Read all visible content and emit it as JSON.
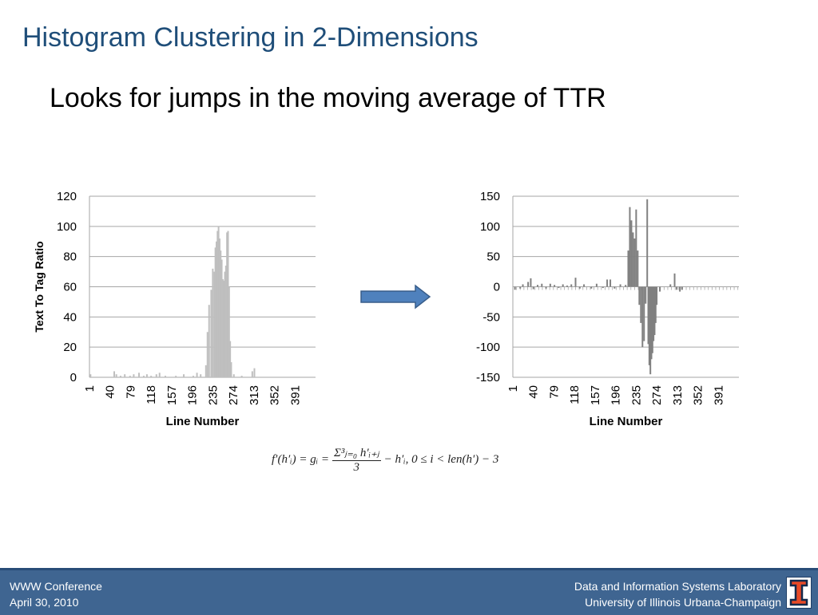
{
  "slide": {
    "title": "Histogram Clustering in 2-Dimensions",
    "bullet": "Looks for jumps in the moving average of TTR"
  },
  "chart_data": [
    {
      "type": "bar",
      "title": "",
      "xlabel": "Line Number",
      "ylabel": "Text To Tag Ratio",
      "ylim": [
        0,
        120
      ],
      "yticks": [
        "0",
        "20",
        "40",
        "60",
        "80",
        "100",
        "120"
      ],
      "xticks": [
        "1",
        "40",
        "79",
        "118",
        "157",
        "196",
        "235",
        "274",
        "313",
        "352",
        "391"
      ],
      "xrange": [
        1,
        430
      ],
      "grid": true,
      "color": "#bfbfbf",
      "points": [
        [
          3,
          2
        ],
        [
          48,
          4
        ],
        [
          52,
          2
        ],
        [
          60,
          1
        ],
        [
          68,
          2
        ],
        [
          78,
          1
        ],
        [
          85,
          2
        ],
        [
          95,
          3
        ],
        [
          104,
          1
        ],
        [
          110,
          2
        ],
        [
          118,
          1
        ],
        [
          128,
          2
        ],
        [
          134,
          3
        ],
        [
          145,
          1
        ],
        [
          165,
          1
        ],
        [
          180,
          2
        ],
        [
          198,
          1
        ],
        [
          205,
          3
        ],
        [
          212,
          2
        ],
        [
          222,
          8
        ],
        [
          225,
          30
        ],
        [
          228,
          48
        ],
        [
          232,
          58
        ],
        [
          235,
          72
        ],
        [
          238,
          70
        ],
        [
          240,
          86
        ],
        [
          242,
          90
        ],
        [
          244,
          97
        ],
        [
          246,
          100
        ],
        [
          248,
          92
        ],
        [
          250,
          84
        ],
        [
          252,
          78
        ],
        [
          254,
          65
        ],
        [
          256,
          64
        ],
        [
          258,
          70
        ],
        [
          260,
          74
        ],
        [
          262,
          96
        ],
        [
          264,
          97
        ],
        [
          266,
          60
        ],
        [
          268,
          24
        ],
        [
          270,
          10
        ],
        [
          275,
          2
        ],
        [
          290,
          1
        ],
        [
          310,
          4
        ],
        [
          314,
          6
        ]
      ]
    },
    {
      "type": "bar",
      "title": "",
      "xlabel": "Line Number",
      "ylabel": "",
      "ylim": [
        -150,
        150
      ],
      "yticks": [
        "-150",
        "-100",
        "-50",
        "0",
        "50",
        "100",
        "150"
      ],
      "xticks": [
        "1",
        "40",
        "79",
        "118",
        "157",
        "196",
        "235",
        "274",
        "313",
        "352",
        "391"
      ],
      "xrange": [
        1,
        430
      ],
      "grid": true,
      "color": "#808080",
      "points": [
        [
          5,
          -5
        ],
        [
          15,
          -3
        ],
        [
          20,
          4
        ],
        [
          30,
          8
        ],
        [
          35,
          14
        ],
        [
          40,
          -4
        ],
        [
          48,
          3
        ],
        [
          56,
          5
        ],
        [
          64,
          -3
        ],
        [
          72,
          5
        ],
        [
          80,
          3
        ],
        [
          88,
          -2
        ],
        [
          96,
          4
        ],
        [
          104,
          2
        ],
        [
          112,
          4
        ],
        [
          120,
          15
        ],
        [
          128,
          -3
        ],
        [
          136,
          4
        ],
        [
          150,
          -3
        ],
        [
          160,
          5
        ],
        [
          172,
          -2
        ],
        [
          180,
          12
        ],
        [
          186,
          12
        ],
        [
          194,
          -3
        ],
        [
          205,
          4
        ],
        [
          215,
          3
        ],
        [
          220,
          60
        ],
        [
          223,
          132
        ],
        [
          226,
          110
        ],
        [
          229,
          90
        ],
        [
          232,
          80
        ],
        [
          235,
          128
        ],
        [
          238,
          60
        ],
        [
          241,
          -30
        ],
        [
          244,
          -60
        ],
        [
          247,
          -100
        ],
        [
          250,
          -90
        ],
        [
          253,
          -28
        ],
        [
          256,
          145
        ],
        [
          258,
          -95
        ],
        [
          260,
          -130
        ],
        [
          262,
          -145
        ],
        [
          264,
          -120
        ],
        [
          266,
          -110
        ],
        [
          268,
          -90
        ],
        [
          270,
          -80
        ],
        [
          272,
          -60
        ],
        [
          274,
          -30
        ],
        [
          280,
          -8
        ],
        [
          300,
          4
        ],
        [
          308,
          22
        ],
        [
          312,
          -5
        ],
        [
          318,
          -8
        ],
        [
          322,
          -5
        ]
      ]
    }
  ],
  "formula": {
    "lhs": "f′(h′ᵢ) = gᵢ =",
    "numerator": "Σ³ⱼ₌₀ h′ᵢ₊ⱼ",
    "denominator": "3",
    "rhs": "− h′ᵢ, 0 ≤ i < len(h′) − 3"
  },
  "footer": {
    "left_line1": "WWW Conference",
    "left_line2": "April 30, 2010",
    "right_line1": "Data and Information Systems Laboratory",
    "right_line2": "University of Illinois Urbana-Champaign"
  },
  "colors": {
    "title": "#1f4e79",
    "arrow_fill": "#4f81bd",
    "arrow_stroke": "#385d8a",
    "footer_bg": "#3f6591",
    "logo_orange": "#e84a27",
    "logo_blue": "#13294b"
  },
  "icons": {
    "arrow": "right-arrow-icon",
    "logo": "illinois-i-logo"
  }
}
